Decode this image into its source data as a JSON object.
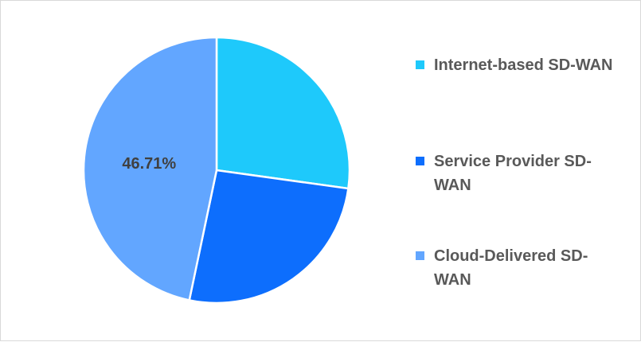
{
  "chart_data": {
    "type": "pie",
    "title": "",
    "series": [
      {
        "categories": [
          "Internet-based SD-WAN",
          "Service Provider SD-WAN",
          "Cloud-Delivered SD-WAN"
        ],
        "values": [
          27.2,
          26.09,
          46.71
        ]
      }
    ],
    "colors": [
      "#1ec9fb",
      "#0d6efd",
      "#62a6ff"
    ],
    "data_labels": [
      "",
      "",
      "46.71%"
    ],
    "legend_position": "right"
  },
  "legend": {
    "items": [
      {
        "label": "Internet-based SD-WAN",
        "color": "#1ec9fb"
      },
      {
        "label": "Service Provider SD-WAN",
        "color": "#0d6efd"
      },
      {
        "label": "Cloud-Delivered SD-WAN",
        "color": "#62a6ff"
      }
    ]
  }
}
